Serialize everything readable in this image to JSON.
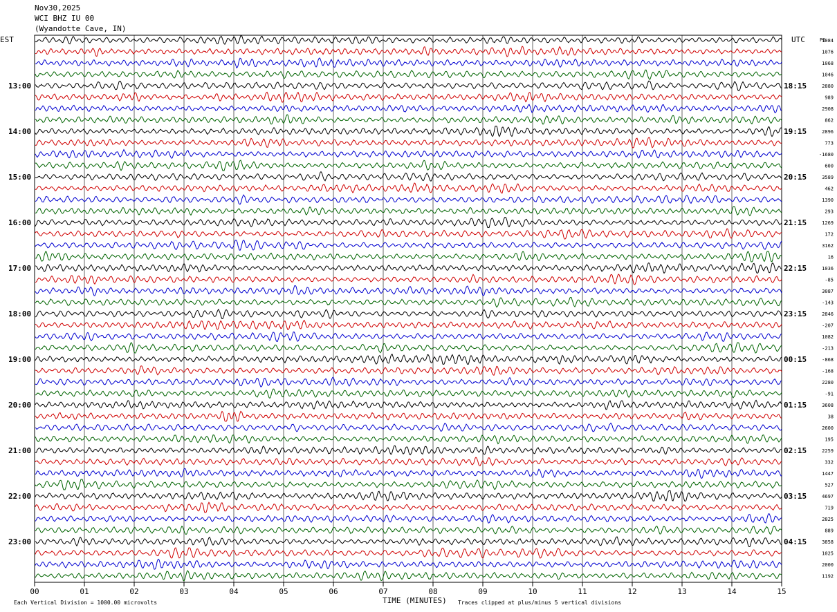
{
  "header": {
    "date": "Nov30,2025",
    "station": "WCI BHZ IU 00",
    "location": "(Wyandotte Cave, IN)"
  },
  "footer": {
    "scale_note": "Each Vertical Division = 1000.00 microvolts",
    "clip_note": "Traces clipped at plus/minus 5 vertical divisions"
  },
  "chart_data": {
    "type": "line",
    "title": "",
    "xlabel": "TIME (MINUTES)",
    "xlim": [
      0,
      15
    ],
    "x_ticks": [
      "00",
      "01",
      "02",
      "03",
      "04",
      "05",
      "06",
      "07",
      "08",
      "09",
      "10",
      "11",
      "12",
      "13",
      "14",
      "15"
    ],
    "left_axis_label": "EST",
    "right_axis_label": "UTC",
    "right_corner_label": "PG",
    "left_hour_labels": [
      "13:00",
      "14:00",
      "15:00",
      "16:00",
      "17:00",
      "18:00",
      "19:00",
      "20:00",
      "21:00",
      "22:00",
      "23:00"
    ],
    "right_hour_labels": [
      "18:15",
      "19:15",
      "20:15",
      "21:15",
      "22:15",
      "23:15",
      "00:15",
      "01:15",
      "02:15",
      "03:15",
      "04:15"
    ],
    "trace_colors": [
      "#000000",
      "#d00000",
      "#0000d0",
      "#006400"
    ],
    "trace_offsets": [
      "1084",
      "1076",
      "1068",
      "1046",
      "2880",
      "989",
      "2908",
      "862",
      "2896",
      "773",
      "-1680",
      "600",
      "3589",
      "462",
      "1390",
      "293",
      "1269",
      "172",
      "3162",
      "16",
      "1036",
      "-85",
      "3087",
      "-143",
      "2846",
      "-207",
      "1082",
      "-213",
      "-868",
      "-168",
      "2280",
      "-91",
      "3608",
      "38",
      "2600",
      "195",
      "2259",
      "332",
      "1447",
      "527",
      "4697",
      "719",
      "2825",
      "889",
      "3858",
      "1025",
      "2000",
      "1192"
    ]
  }
}
